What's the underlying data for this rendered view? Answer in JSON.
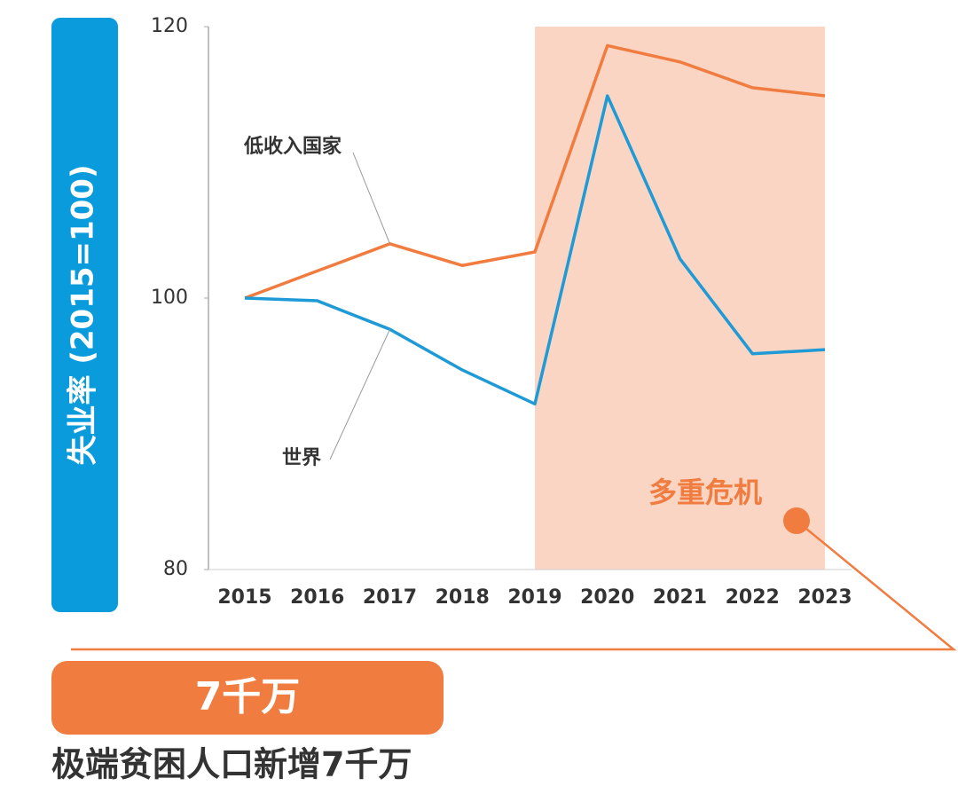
{
  "chart_data": {
    "type": "line",
    "y_label": "失业率 (2015=100)",
    "categories": [
      "2015",
      "2016",
      "2017",
      "2018",
      "2019",
      "2020",
      "2021",
      "2022",
      "2023"
    ],
    "series": [
      {
        "name": "低收入国家",
        "color": "#f07c3f",
        "values": [
          100,
          102,
          104,
          102.4,
          103.4,
          118.6,
          117.4,
          115.5,
          114.9
        ]
      },
      {
        "name": "世界",
        "color": "#1e9ad6",
        "values": [
          100,
          99.8,
          97.7,
          94.7,
          92.2,
          114.9,
          102.9,
          95.9,
          96.2
        ]
      }
    ],
    "ylim": [
      80,
      120
    ],
    "yticks": [
      80,
      100,
      120
    ],
    "highlight": {
      "from": "2019",
      "to": "2023",
      "label": "多重危机",
      "color": "#fbd5c3"
    },
    "callout": {
      "value_label": "7千万",
      "text": "极端贫困人口新增7千万"
    }
  }
}
